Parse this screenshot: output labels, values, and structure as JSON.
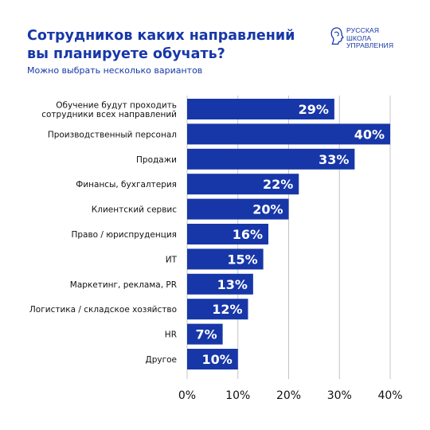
{
  "header": {
    "title_line1": "Сотрудников каких направлений",
    "title_line2": "вы планируете обучать?",
    "subtitle": "Можно выбрать несколько вариантов"
  },
  "logo": {
    "line1": "РУССКАЯ",
    "line2": "ШКОЛА",
    "line3": "УПРАВЛЕНИЯ",
    "icon": "profile-head-logo-icon"
  },
  "colors": {
    "bar": "#1737a8",
    "title": "#1737a8",
    "grid": "#c4c4c4",
    "value_text": "#ffffff"
  },
  "chart_data": {
    "type": "bar",
    "orientation": "horizontal",
    "categories": [
      [
        "Обучение будут проходить",
        "сотрудники всех направлений"
      ],
      [
        "Производственный персонал"
      ],
      [
        "Продажи"
      ],
      [
        "Финансы, бухгалтерия"
      ],
      [
        "Клиентский сервис"
      ],
      [
        "Право / юриспруденция"
      ],
      [
        "ИТ"
      ],
      [
        "Маркетинг, реклама, PR"
      ],
      [
        "Логистика / складское хозяйство"
      ],
      [
        "HR"
      ],
      [
        "Другое"
      ]
    ],
    "values": [
      29,
      40,
      33,
      22,
      20,
      16,
      15,
      13,
      12,
      7,
      10
    ],
    "value_labels": [
      "29%",
      "40%",
      "33%",
      "22%",
      "20%",
      "16%",
      "15%",
      "13%",
      "12%",
      "7%",
      "10%"
    ],
    "xlim": [
      0,
      40
    ],
    "xticks": [
      0,
      10,
      20,
      30,
      40
    ],
    "xtick_labels": [
      "0%",
      "10%",
      "20%",
      "30%",
      "40%"
    ],
    "grid": true,
    "legend": "none"
  }
}
